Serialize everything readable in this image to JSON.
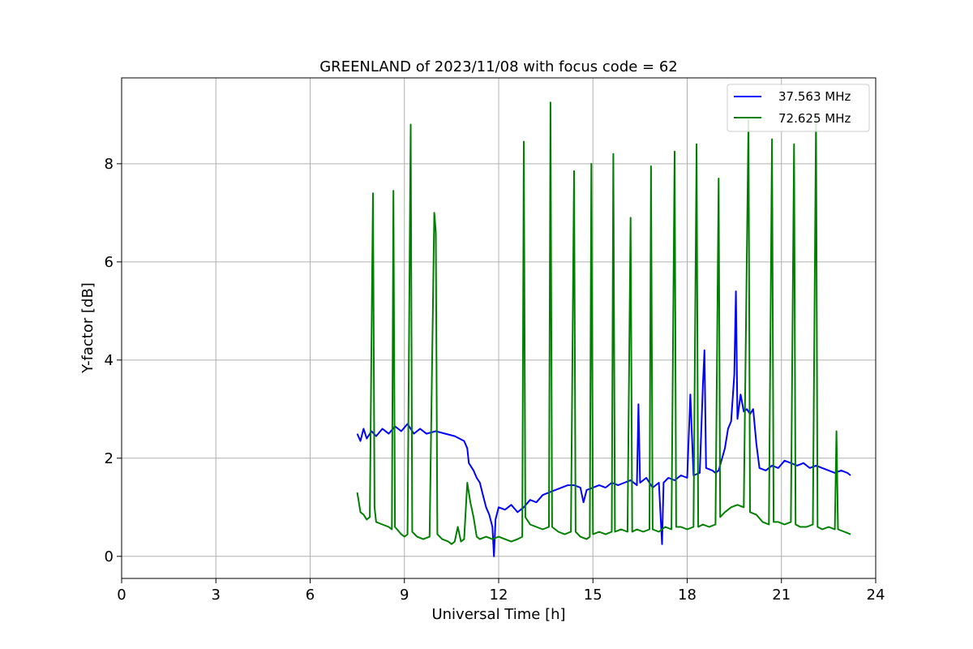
{
  "chart_data": {
    "type": "line",
    "title": "GREENLAND of 2023/11/08 with focus code = 62",
    "xlabel": "Universal Time [h]",
    "ylabel": "Y-factor [dB]",
    "xlim": [
      0,
      24
    ],
    "ylim": [
      -0.45,
      9.75
    ],
    "xticks": [
      0,
      3,
      6,
      9,
      12,
      15,
      18,
      21,
      24
    ],
    "yticks": [
      0,
      2,
      4,
      6,
      8
    ],
    "grid": true,
    "legend_position": "top-right",
    "series": [
      {
        "name": "37.563 MHz",
        "color": "#0000ff",
        "points": [
          [
            7.5,
            2.5
          ],
          [
            7.6,
            2.35
          ],
          [
            7.7,
            2.6
          ],
          [
            7.8,
            2.4
          ],
          [
            7.95,
            2.55
          ],
          [
            8.1,
            2.45
          ],
          [
            8.3,
            2.6
          ],
          [
            8.5,
            2.5
          ],
          [
            8.7,
            2.65
          ],
          [
            8.9,
            2.55
          ],
          [
            9.1,
            2.7
          ],
          [
            9.3,
            2.5
          ],
          [
            9.5,
            2.6
          ],
          [
            9.7,
            2.5
          ],
          [
            10.0,
            2.55
          ],
          [
            10.3,
            2.5
          ],
          [
            10.6,
            2.45
          ],
          [
            10.9,
            2.35
          ],
          [
            11.0,
            2.2
          ],
          [
            11.05,
            1.9
          ],
          [
            11.2,
            1.75
          ],
          [
            11.3,
            1.6
          ],
          [
            11.4,
            1.5
          ],
          [
            11.5,
            1.25
          ],
          [
            11.6,
            1.0
          ],
          [
            11.7,
            0.85
          ],
          [
            11.8,
            0.6
          ],
          [
            11.85,
            0.0
          ],
          [
            11.9,
            0.75
          ],
          [
            12.0,
            1.0
          ],
          [
            12.2,
            0.95
          ],
          [
            12.4,
            1.05
          ],
          [
            12.6,
            0.9
          ],
          [
            12.8,
            1.0
          ],
          [
            13.0,
            1.15
          ],
          [
            13.2,
            1.1
          ],
          [
            13.4,
            1.25
          ],
          [
            13.6,
            1.3
          ],
          [
            13.8,
            1.35
          ],
          [
            14.0,
            1.4
          ],
          [
            14.2,
            1.45
          ],
          [
            14.4,
            1.45
          ],
          [
            14.6,
            1.4
          ],
          [
            14.7,
            1.1
          ],
          [
            14.8,
            1.35
          ],
          [
            15.0,
            1.4
          ],
          [
            15.2,
            1.45
          ],
          [
            15.4,
            1.4
          ],
          [
            15.6,
            1.5
          ],
          [
            15.8,
            1.45
          ],
          [
            16.0,
            1.5
          ],
          [
            16.2,
            1.55
          ],
          [
            16.4,
            1.45
          ],
          [
            16.45,
            3.1
          ],
          [
            16.5,
            1.5
          ],
          [
            16.7,
            1.6
          ],
          [
            16.9,
            1.4
          ],
          [
            17.1,
            1.5
          ],
          [
            17.2,
            0.25
          ],
          [
            17.25,
            1.5
          ],
          [
            17.4,
            1.6
          ],
          [
            17.6,
            1.55
          ],
          [
            17.8,
            1.65
          ],
          [
            18.0,
            1.6
          ],
          [
            18.1,
            3.3
          ],
          [
            18.2,
            1.65
          ],
          [
            18.4,
            1.7
          ],
          [
            18.5,
            3.5
          ],
          [
            18.55,
            4.2
          ],
          [
            18.6,
            1.8
          ],
          [
            18.8,
            1.75
          ],
          [
            18.9,
            1.7
          ],
          [
            19.0,
            1.75
          ],
          [
            19.2,
            2.2
          ],
          [
            19.3,
            2.6
          ],
          [
            19.4,
            2.75
          ],
          [
            19.5,
            3.7
          ],
          [
            19.55,
            5.4
          ],
          [
            19.6,
            2.8
          ],
          [
            19.7,
            3.3
          ],
          [
            19.8,
            2.95
          ],
          [
            19.9,
            3.0
          ],
          [
            20.0,
            2.9
          ],
          [
            20.1,
            3.0
          ],
          [
            20.2,
            2.3
          ],
          [
            20.3,
            1.8
          ],
          [
            20.5,
            1.75
          ],
          [
            20.7,
            1.85
          ],
          [
            20.9,
            1.8
          ],
          [
            21.1,
            1.95
          ],
          [
            21.3,
            1.9
          ],
          [
            21.5,
            1.85
          ],
          [
            21.7,
            1.9
          ],
          [
            21.9,
            1.8
          ],
          [
            22.1,
            1.85
          ],
          [
            22.3,
            1.8
          ],
          [
            22.5,
            1.75
          ],
          [
            22.7,
            1.7
          ],
          [
            22.9,
            1.75
          ],
          [
            23.1,
            1.7
          ],
          [
            23.2,
            1.65
          ]
        ]
      },
      {
        "name": "72.625 MHz",
        "color": "#008000",
        "points": [
          [
            7.5,
            1.3
          ],
          [
            7.55,
            1.1
          ],
          [
            7.6,
            0.9
          ],
          [
            7.7,
            0.85
          ],
          [
            7.8,
            0.75
          ],
          [
            7.9,
            0.8
          ],
          [
            7.95,
            4.3
          ],
          [
            8.0,
            7.4
          ],
          [
            8.05,
            1.0
          ],
          [
            8.1,
            0.7
          ],
          [
            8.3,
            0.65
          ],
          [
            8.5,
            0.6
          ],
          [
            8.6,
            0.55
          ],
          [
            8.65,
            7.45
          ],
          [
            8.7,
            0.6
          ],
          [
            8.9,
            0.45
          ],
          [
            9.0,
            0.4
          ],
          [
            9.1,
            0.45
          ],
          [
            9.2,
            8.8
          ],
          [
            9.25,
            0.5
          ],
          [
            9.4,
            0.4
          ],
          [
            9.6,
            0.35
          ],
          [
            9.8,
            0.4
          ],
          [
            9.95,
            7.0
          ],
          [
            10.0,
            6.6
          ],
          [
            10.05,
            0.45
          ],
          [
            10.2,
            0.35
          ],
          [
            10.4,
            0.3
          ],
          [
            10.5,
            0.25
          ],
          [
            10.6,
            0.3
          ],
          [
            10.7,
            0.6
          ],
          [
            10.8,
            0.3
          ],
          [
            10.9,
            0.35
          ],
          [
            11.0,
            1.5
          ],
          [
            11.1,
            1.1
          ],
          [
            11.2,
            0.8
          ],
          [
            11.3,
            0.4
          ],
          [
            11.4,
            0.35
          ],
          [
            11.6,
            0.4
          ],
          [
            11.8,
            0.35
          ],
          [
            12.0,
            0.4
          ],
          [
            12.2,
            0.35
          ],
          [
            12.4,
            0.3
          ],
          [
            12.6,
            0.35
          ],
          [
            12.75,
            0.4
          ],
          [
            12.8,
            8.45
          ],
          [
            12.85,
            0.8
          ],
          [
            13.0,
            0.65
          ],
          [
            13.2,
            0.6
          ],
          [
            13.4,
            0.55
          ],
          [
            13.6,
            0.6
          ],
          [
            13.65,
            9.25
          ],
          [
            13.7,
            0.6
          ],
          [
            13.9,
            0.5
          ],
          [
            14.1,
            0.45
          ],
          [
            14.3,
            0.5
          ],
          [
            14.4,
            7.85
          ],
          [
            14.45,
            0.5
          ],
          [
            14.6,
            0.4
          ],
          [
            14.8,
            0.35
          ],
          [
            14.9,
            0.4
          ],
          [
            14.95,
            8.0
          ],
          [
            15.0,
            0.45
          ],
          [
            15.2,
            0.5
          ],
          [
            15.4,
            0.45
          ],
          [
            15.6,
            0.5
          ],
          [
            15.65,
            8.2
          ],
          [
            15.7,
            0.5
          ],
          [
            15.9,
            0.55
          ],
          [
            16.1,
            0.5
          ],
          [
            16.2,
            6.9
          ],
          [
            16.25,
            0.5
          ],
          [
            16.4,
            0.55
          ],
          [
            16.6,
            0.5
          ],
          [
            16.8,
            0.55
          ],
          [
            16.85,
            7.95
          ],
          [
            16.9,
            0.55
          ],
          [
            17.1,
            0.5
          ],
          [
            17.3,
            0.6
          ],
          [
            17.5,
            0.55
          ],
          [
            17.6,
            8.25
          ],
          [
            17.65,
            0.6
          ],
          [
            17.8,
            0.6
          ],
          [
            18.0,
            0.55
          ],
          [
            18.2,
            0.6
          ],
          [
            18.3,
            8.4
          ],
          [
            18.35,
            0.6
          ],
          [
            18.5,
            0.65
          ],
          [
            18.7,
            0.6
          ],
          [
            18.9,
            0.65
          ],
          [
            19.0,
            7.7
          ],
          [
            19.05,
            0.8
          ],
          [
            19.2,
            0.9
          ],
          [
            19.4,
            1.0
          ],
          [
            19.6,
            1.05
          ],
          [
            19.8,
            1.0
          ],
          [
            19.95,
            8.9
          ],
          [
            20.0,
            0.9
          ],
          [
            20.2,
            0.85
          ],
          [
            20.4,
            0.7
          ],
          [
            20.6,
            0.65
          ],
          [
            20.7,
            8.5
          ],
          [
            20.75,
            0.7
          ],
          [
            20.9,
            0.7
          ],
          [
            21.1,
            0.65
          ],
          [
            21.3,
            0.7
          ],
          [
            21.4,
            8.4
          ],
          [
            21.45,
            0.65
          ],
          [
            21.6,
            0.6
          ],
          [
            21.8,
            0.6
          ],
          [
            22.0,
            0.65
          ],
          [
            22.1,
            8.95
          ],
          [
            22.15,
            0.6
          ],
          [
            22.3,
            0.55
          ],
          [
            22.5,
            0.6
          ],
          [
            22.7,
            0.55
          ],
          [
            22.75,
            2.55
          ],
          [
            22.8,
            0.55
          ],
          [
            23.0,
            0.5
          ],
          [
            23.2,
            0.45
          ]
        ]
      }
    ]
  }
}
